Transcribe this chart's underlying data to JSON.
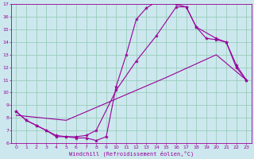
{
  "xlabel": "Windchill (Refroidissement éolien,°C)",
  "bg_color": "#cce8ee",
  "line_color": "#990099",
  "grid_color": "#99ccbb",
  "xlim": [
    -0.5,
    23.5
  ],
  "ylim": [
    6,
    17
  ],
  "xticks": [
    0,
    1,
    2,
    3,
    4,
    5,
    6,
    7,
    8,
    9,
    10,
    11,
    12,
    13,
    14,
    15,
    16,
    17,
    18,
    19,
    20,
    21,
    22,
    23
  ],
  "yticks": [
    6,
    7,
    8,
    9,
    10,
    11,
    12,
    13,
    14,
    15,
    16,
    17
  ],
  "line1_x": [
    0,
    1,
    2,
    3,
    4,
    5,
    6,
    7,
    8,
    9,
    10,
    11,
    12,
    13,
    14,
    15,
    16,
    17,
    18,
    19,
    20,
    21,
    22,
    23
  ],
  "line1_y": [
    8.5,
    7.8,
    7.4,
    7.0,
    6.5,
    6.5,
    6.4,
    6.4,
    6.2,
    6.5,
    10.5,
    13.0,
    15.8,
    16.7,
    17.2,
    17.4,
    17.0,
    16.8,
    15.2,
    14.3,
    14.2,
    14.0,
    12.0,
    11.0
  ],
  "line2_x": [
    0,
    1,
    2,
    3,
    4,
    5,
    6,
    7,
    8,
    10,
    12,
    14,
    16,
    17,
    18,
    20,
    21,
    22,
    23
  ],
  "line2_y": [
    8.5,
    7.8,
    7.4,
    7.0,
    6.6,
    6.5,
    6.5,
    6.6,
    7.0,
    10.2,
    12.5,
    14.5,
    16.8,
    16.8,
    15.2,
    14.3,
    14.0,
    12.2,
    11.0
  ],
  "line3_x": [
    0,
    5,
    10,
    15,
    20,
    23
  ],
  "line3_y": [
    8.2,
    7.8,
    9.5,
    11.2,
    13.0,
    11.0
  ]
}
